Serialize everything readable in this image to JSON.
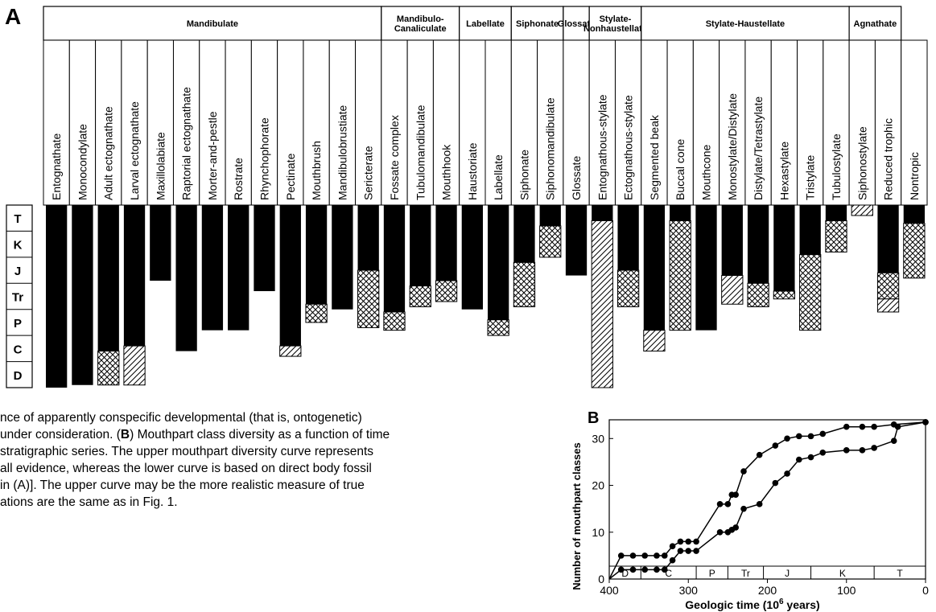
{
  "figure_a": {
    "panel_label": "A",
    "groups": [
      {
        "label": "Mandibulate",
        "count": 13
      },
      {
        "label": "Mandibulo-\nCanaliculate",
        "count": 3
      },
      {
        "label": "Labellate",
        "count": 2
      },
      {
        "label": "Siphonate",
        "count": 2
      },
      {
        "label": "Glossate",
        "count": 1
      },
      {
        "label": "Stylate-\nNonhaustellate",
        "count": 2
      },
      {
        "label": "Stylate-Haustellate",
        "count": 8
      },
      {
        "label": "Agnathate",
        "count": 2
      }
    ],
    "periods": [
      "T",
      "K",
      "J",
      "Tr",
      "P",
      "C",
      "D"
    ],
    "legend_fill_types": [
      "solid",
      "crosshatch",
      "hatched"
    ],
    "classes": [
      {
        "name": "Entognathate",
        "solid_bottom": 7.0,
        "crosshatch_bottom": null,
        "hatched_bottom": null
      },
      {
        "name": "Monocondylate",
        "solid_bottom": 6.9,
        "crosshatch_bottom": null,
        "hatched_bottom": null
      },
      {
        "name": "Adult ectognathate",
        "solid_bottom": 5.6,
        "crosshatch_bottom": 6.9,
        "hatched_bottom": null
      },
      {
        "name": "Larval ectognathate",
        "solid_bottom": 5.4,
        "crosshatch_bottom": null,
        "hatched_bottom": 6.9
      },
      {
        "name": "Maxillolabiate",
        "solid_bottom": 2.9,
        "crosshatch_bottom": null,
        "hatched_bottom": null
      },
      {
        "name": "Raptorial ectognathate",
        "solid_bottom": 5.6,
        "crosshatch_bottom": null,
        "hatched_bottom": null
      },
      {
        "name": "Morter-and-pestle",
        "solid_bottom": 4.8,
        "crosshatch_bottom": null,
        "hatched_bottom": null
      },
      {
        "name": "Rostrate",
        "solid_bottom": 4.8,
        "crosshatch_bottom": null,
        "hatched_bottom": null
      },
      {
        "name": "Rhynchophorate",
        "solid_bottom": 3.3,
        "crosshatch_bottom": null,
        "hatched_bottom": null
      },
      {
        "name": "Pectinate",
        "solid_bottom": 5.4,
        "crosshatch_bottom": null,
        "hatched_bottom": 5.8
      },
      {
        "name": "Mouthbrush",
        "solid_bottom": 3.8,
        "crosshatch_bottom": 4.5,
        "hatched_bottom": null
      },
      {
        "name": "Mandibulobrustiate",
        "solid_bottom": 4.0,
        "crosshatch_bottom": null,
        "hatched_bottom": null
      },
      {
        "name": "Sericterate",
        "solid_bottom": 2.5,
        "crosshatch_bottom": 4.7,
        "hatched_bottom": null
      },
      {
        "name": "Fossate complex",
        "solid_bottom": 4.1,
        "crosshatch_bottom": 4.8,
        "hatched_bottom": null
      },
      {
        "name": "Tubulomandibulate",
        "solid_bottom": 3.1,
        "crosshatch_bottom": 3.9,
        "hatched_bottom": null
      },
      {
        "name": "Mouthhook",
        "solid_bottom": 2.9,
        "crosshatch_bottom": 3.7,
        "hatched_bottom": null
      },
      {
        "name": "Haustoriate",
        "solid_bottom": 4.0,
        "crosshatch_bottom": null,
        "hatched_bottom": null
      },
      {
        "name": "Labellate",
        "solid_bottom": 4.4,
        "crosshatch_bottom": 5.0,
        "hatched_bottom": null
      },
      {
        "name": "Siphonate",
        "solid_bottom": 2.2,
        "crosshatch_bottom": 3.9,
        "hatched_bottom": null
      },
      {
        "name": "Siphonomandibulate",
        "solid_bottom": 0.8,
        "crosshatch_bottom": 2.0,
        "hatched_bottom": null
      },
      {
        "name": "Glossate",
        "solid_bottom": 2.7,
        "crosshatch_bottom": null,
        "hatched_bottom": null
      },
      {
        "name": "Entognathous-stylate",
        "solid_bottom": 0.6,
        "crosshatch_bottom": null,
        "hatched_bottom": 7.0
      },
      {
        "name": "Ectognathous-stylate",
        "solid_bottom": 2.5,
        "crosshatch_bottom": 3.9,
        "hatched_bottom": null
      },
      {
        "name": "Segmented beak",
        "solid_bottom": 4.8,
        "crosshatch_bottom": null,
        "hatched_bottom": 5.6
      },
      {
        "name": "Buccal cone",
        "solid_bottom": 0.6,
        "crosshatch_bottom": 4.8,
        "hatched_bottom": null
      },
      {
        "name": "Mouthcone",
        "solid_bottom": 4.8,
        "crosshatch_bottom": null,
        "hatched_bottom": null
      },
      {
        "name": "Monostylate/Distylate",
        "solid_bottom": 2.7,
        "crosshatch_bottom": null,
        "hatched_bottom": 3.8
      },
      {
        "name": "Distylate/Tetrastylate",
        "solid_bottom": 3.0,
        "crosshatch_bottom": 3.9,
        "hatched_bottom": null
      },
      {
        "name": "Hexastylate",
        "solid_bottom": 3.3,
        "crosshatch_bottom": 3.6,
        "hatched_bottom": null
      },
      {
        "name": "Tristylate",
        "solid_bottom": 1.9,
        "crosshatch_bottom": 4.8,
        "hatched_bottom": null
      },
      {
        "name": "Tubulostylate",
        "solid_bottom": 0.6,
        "crosshatch_bottom": 1.8,
        "hatched_bottom": null
      },
      {
        "name": "Siphonostylate",
        "solid_bottom": null,
        "crosshatch_bottom": null,
        "hatched_bottom": 0.4,
        "solid_top": 0.0
      },
      {
        "name": "Reduced trophic",
        "solid_bottom": 2.6,
        "crosshatch_bottom": 3.6,
        "hatched_bottom": 4.1
      },
      {
        "name": "Nontropic",
        "solid_bottom": 0.7,
        "crosshatch_bottom": 2.8,
        "hatched_bottom": null
      }
    ]
  },
  "caption": {
    "line1": "nce of apparently conspecific developmental (that is, ontogenetic)",
    "line2_a": "under consideration. (",
    "line2_bold": "B",
    "line2_b": ") Mouthpart class diversity as a function of time",
    "line3": "stratigraphic series. The upper mouthpart diversity curve represents",
    "line4": "all evidence, whereas the lower curve is based on direct body fossil",
    "line5": "in (A)]. The upper curve may be the more realistic measure of true",
    "line6": "ations are the same as in Fig. 1."
  },
  "chart_data": {
    "type": "line",
    "panel_label": "B",
    "xlabel": "Geologic time (10",
    "xlabel_sup": "6",
    "xlabel_end": " years)",
    "ylabel": "Number of mouthpart classes",
    "xlim": [
      400,
      0
    ],
    "ylim": [
      0,
      34
    ],
    "xticks": [
      400,
      300,
      200,
      100,
      0
    ],
    "yticks": [
      0,
      10,
      20,
      30
    ],
    "periods": [
      {
        "label": "D",
        "from": 400,
        "to": 360
      },
      {
        "label": "C",
        "from": 360,
        "to": 290
      },
      {
        "label": "P",
        "from": 290,
        "to": 250
      },
      {
        "label": "Tr",
        "from": 250,
        "to": 205
      },
      {
        "label": "J",
        "from": 205,
        "to": 145
      },
      {
        "label": "K",
        "from": 145,
        "to": 65
      },
      {
        "label": "T",
        "from": 65,
        "to": 0
      }
    ],
    "series": [
      {
        "x": [
          400,
          385,
          370,
          355,
          340,
          330,
          320,
          310,
          300,
          290,
          260,
          250,
          245,
          240,
          230,
          210,
          190,
          175,
          160,
          145,
          130,
          100,
          80,
          65,
          40,
          0
        ],
        "y": [
          0,
          5,
          5,
          5,
          5,
          5,
          7,
          8,
          8,
          8,
          16,
          16,
          18,
          18,
          23,
          26.5,
          28.5,
          30,
          30.5,
          30.5,
          31,
          32.5,
          32.5,
          32.5,
          33,
          33.5
        ]
      },
      {
        "x": [
          400,
          385,
          370,
          355,
          340,
          330,
          320,
          310,
          300,
          290,
          260,
          250,
          245,
          240,
          230,
          210,
          190,
          175,
          160,
          145,
          130,
          100,
          80,
          65,
          40,
          35,
          0
        ],
        "y": [
          0,
          2,
          2,
          2,
          2,
          2,
          4,
          6,
          6,
          6,
          10,
          10,
          10.5,
          11,
          15,
          16,
          20.5,
          22.5,
          25.5,
          26,
          27,
          27.5,
          27.5,
          28,
          29.5,
          32.5,
          33.5
        ]
      }
    ]
  }
}
